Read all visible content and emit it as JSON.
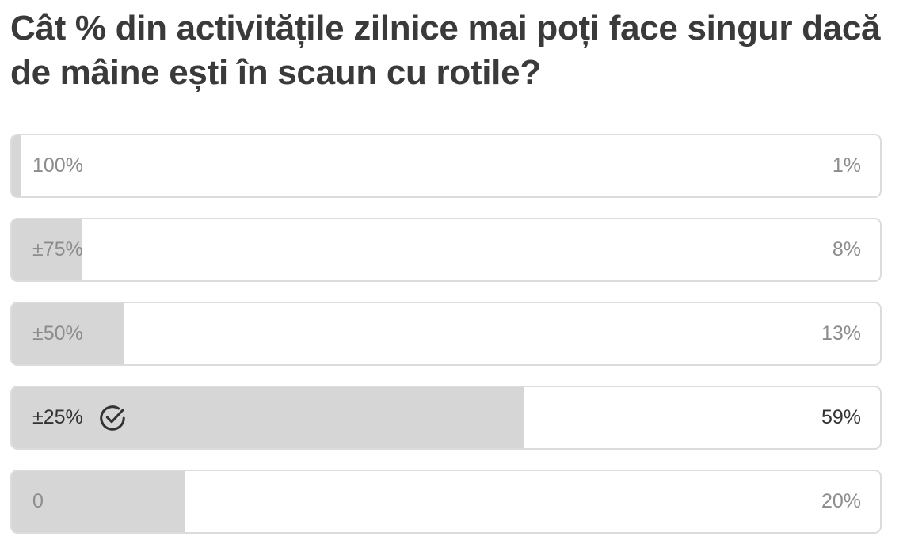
{
  "poll": {
    "question": "Cât % din activitățile zilnice mai poți face singur dacă de mâine ești în scaun cu rotile?",
    "options": [
      {
        "label": "100%",
        "percent": 1,
        "percent_label": "1%",
        "selected": false
      },
      {
        "label": "±75%",
        "percent": 8,
        "percent_label": "8%",
        "selected": false
      },
      {
        "label": "±50%",
        "percent": 13,
        "percent_label": "13%",
        "selected": false
      },
      {
        "label": "±25%",
        "percent": 59,
        "percent_label": "59%",
        "selected": true
      },
      {
        "label": "0",
        "percent": 20,
        "percent_label": "20%",
        "selected": false
      }
    ]
  }
}
